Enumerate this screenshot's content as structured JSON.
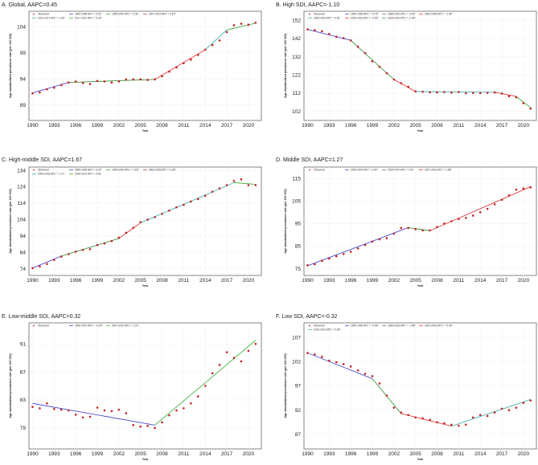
{
  "chart_data": [
    {
      "type": "line",
      "title": "A. Global, AAPC=0.45",
      "xlabel": "Year",
      "ylabel": "Age standardized prevalence rate (per 100 000)",
      "xlim": [
        1989.5,
        2021.8
      ],
      "ylim": [
        86.0,
        107.0
      ],
      "xticks": [
        1990,
        1993,
        1996,
        1999,
        2002,
        2005,
        2008,
        2011,
        2014,
        2017,
        2020
      ],
      "yticks": [
        89,
        94,
        99,
        104
      ],
      "points": {
        "x": [
          1990,
          1991,
          1992,
          1993,
          1994,
          1995,
          1996,
          1997,
          1998,
          1999,
          2000,
          2001,
          2002,
          2003,
          2004,
          2005,
          2006,
          2007,
          2008,
          2009,
          2010,
          2011,
          2012,
          2013,
          2014,
          2015,
          2016,
          2017,
          2018,
          2019,
          2020,
          2021
        ],
        "y": [
          91.2,
          91.4,
          92.0,
          92.3,
          92.8,
          93.3,
          93.5,
          93.2,
          93.0,
          93.6,
          93.5,
          93.3,
          93.5,
          93.9,
          93.9,
          93.9,
          93.8,
          93.9,
          94.5,
          95.4,
          96.2,
          97.0,
          97.7,
          98.6,
          99.6,
          100.5,
          101.4,
          103.0,
          104.3,
          104.6,
          104.4,
          104.8
        ]
      },
      "legend": [
        "Observed",
        "1990-1995 APC = 0.31*",
        "1995-2007 APC = 0.08",
        "2007-2014 APC = 0.87*",
        "2014-2017 APC = 1.28*",
        "2017-2021 APC = 0.23*"
      ],
      "series": [
        {
          "name": "1990-1995 APC = 0.31*",
          "color": "#3333cc",
          "x": [
            1990,
            1995
          ],
          "y": [
            91.3,
            93.3
          ]
        },
        {
          "name": "1995-2007 APC = 0.08",
          "color": "#2e8b2e",
          "x": [
            1995,
            2007
          ],
          "y": [
            93.3,
            93.9
          ]
        },
        {
          "name": "2007-2014 APC = 0.87*",
          "color": "#dd2222",
          "x": [
            2007,
            2014
          ],
          "y": [
            93.9,
            99.6
          ]
        },
        {
          "name": "2014-2017 APC = 1.28*",
          "color": "#2eaaaa",
          "x": [
            2014,
            2017
          ],
          "y": [
            99.6,
            103.4
          ]
        },
        {
          "name": "2017-2021 APC = 0.23*",
          "color": "#2eaa2e",
          "x": [
            2017,
            2021
          ],
          "y": [
            103.4,
            104.7
          ]
        }
      ]
    },
    {
      "type": "line",
      "title": "B. High SDI, AAPC=-1.10",
      "xlabel": "Year",
      "ylabel": "Age standardized prevalence rate (per 100 000)",
      "xlim": [
        1989.5,
        2021.8
      ],
      "ylim": [
        97.0,
        157.0
      ],
      "xticks": [
        1990,
        1993,
        1996,
        1999,
        2002,
        2005,
        2008,
        2011,
        2014,
        2017,
        2020
      ],
      "yticks": [
        102,
        112,
        122,
        132,
        142,
        152
      ],
      "points": {
        "x": [
          1990,
          1991,
          1992,
          1993,
          1994,
          1995,
          1996,
          1997,
          1998,
          1999,
          2000,
          2001,
          2002,
          2003,
          2004,
          2005,
          2006,
          2007,
          2008,
          2009,
          2010,
          2011,
          2012,
          2013,
          2014,
          2015,
          2016,
          2017,
          2018,
          2019,
          2020,
          2021
        ],
        "y": [
          147.0,
          146.6,
          146.0,
          144.5,
          143.0,
          142.2,
          141.0,
          137.5,
          134.0,
          129.5,
          126.5,
          123.0,
          119.5,
          117.5,
          115.5,
          113.0,
          112.8,
          112.5,
          112.4,
          112.6,
          112.3,
          112.6,
          112.0,
          112.1,
          112.0,
          112.2,
          112.4,
          111.8,
          110.3,
          109.7,
          106.5,
          103.5
        ]
      },
      "legend": [
        "Observed",
        "1990-1996 APC = -0.75*",
        "1996-2002 APC = -2.61*",
        "2002-2005 APC = -1.99*",
        "2005-2016 APC = 0.05",
        "2016-2019 APC = -0.65*",
        "2019-2021 APC = -2.34*"
      ],
      "series": [
        {
          "name": "1990-1996 APC = -0.75*",
          "color": "#3333cc",
          "x": [
            1990,
            1996
          ],
          "y": [
            147.0,
            141.0
          ]
        },
        {
          "name": "1996-2002 APC = -2.61*",
          "color": "#2e8b2e",
          "x": [
            1996,
            2002
          ],
          "y": [
            141.0,
            119.5
          ]
        },
        {
          "name": "2002-2005 APC = -1.99*",
          "color": "#dd2222",
          "x": [
            2002,
            2005
          ],
          "y": [
            119.5,
            112.9
          ]
        },
        {
          "name": "2005-2016 APC = 0.05",
          "color": "#2eaaaa",
          "x": [
            2005,
            2016
          ],
          "y": [
            112.9,
            112.5
          ]
        },
        {
          "name": "2016-2019 APC = -0.65*",
          "color": "#dd2222",
          "x": [
            2016,
            2019
          ],
          "y": [
            112.5,
            110.2
          ]
        },
        {
          "name": "2019-2021 APC = -2.34*",
          "color": "#2eaa2e",
          "x": [
            2019,
            2021
          ],
          "y": [
            110.2,
            104.0
          ]
        }
      ]
    },
    {
      "type": "line",
      "title": "C. High-middle SDI, AAPC=1.67",
      "xlabel": "Year",
      "ylabel": "Age standardized prevalence rate (per 100 000)",
      "xlim": [
        1989.5,
        2021.8
      ],
      "ylim": [
        70.0,
        136.0
      ],
      "xticks": [
        1990,
        1993,
        1996,
        1999,
        2002,
        2005,
        2008,
        2011,
        2014,
        2017,
        2020
      ],
      "yticks": [
        74,
        84,
        94,
        104,
        114,
        124,
        134
      ],
      "points": {
        "x": [
          1990,
          1991,
          1992,
          1993,
          1994,
          1995,
          1996,
          1997,
          1998,
          1999,
          2000,
          2001,
          2002,
          2003,
          2004,
          2005,
          2006,
          2007,
          2008,
          2009,
          2010,
          2011,
          2012,
          2013,
          2014,
          2015,
          2016,
          2017,
          2018,
          2019,
          2020,
          2021
        ],
        "y": [
          74.5,
          75.5,
          77.0,
          79.5,
          81.5,
          83.0,
          84.5,
          85.5,
          86.0,
          88.5,
          89.5,
          91.0,
          93.0,
          96.0,
          99.0,
          102.5,
          104.0,
          105.5,
          107.5,
          109.5,
          111.5,
          113.0,
          115.0,
          116.5,
          118.5,
          121.0,
          123.0,
          125.0,
          127.5,
          128.5,
          125.0,
          125.0
        ]
      },
      "legend": [
        "Observed",
        "1990-1994 APC = 2.37*",
        "1994-2002 APC = 1.49*",
        "2002-2005 APC = 3.38*",
        "2005-2018 APC = 1.71*",
        "2018-2021 APC = 0.59"
      ],
      "series": [
        {
          "name": "1990-1994 APC = 2.37*",
          "color": "#3333cc",
          "x": [
            1990,
            1994
          ],
          "y": [
            74.5,
            81.8
          ]
        },
        {
          "name": "1994-2002 APC = 1.49*",
          "color": "#2e8b2e",
          "x": [
            1994,
            2002
          ],
          "y": [
            81.8,
            92.5
          ]
        },
        {
          "name": "2002-2005 APC = 3.38*",
          "color": "#dd2222",
          "x": [
            2002,
            2005
          ],
          "y": [
            92.5,
            102.0
          ]
        },
        {
          "name": "2005-2018 APC = 1.71*",
          "color": "#2eaaaa",
          "x": [
            2005,
            2018
          ],
          "y": [
            102.0,
            126.5
          ]
        },
        {
          "name": "2018-2021 APC = 0.59",
          "color": "#2eaa2e",
          "x": [
            2018,
            2021
          ],
          "y": [
            126.5,
            125.5
          ]
        }
      ]
    },
    {
      "type": "line",
      "title": "D. Middle SDI, AAPC=1.27",
      "xlabel": "Year",
      "ylabel": "Age standardized prevalence rate (per 100 000)",
      "xlim": [
        1989.5,
        2021.8
      ],
      "ylim": [
        72.0,
        120.0
      ],
      "xticks": [
        1990,
        1993,
        1996,
        1999,
        2002,
        2005,
        2008,
        2011,
        2014,
        2017,
        2020
      ],
      "yticks": [
        75,
        85,
        95,
        105,
        115
      ],
      "points": {
        "x": [
          1990,
          1991,
          1992,
          1993,
          1994,
          1995,
          1996,
          1997,
          1998,
          1999,
          2000,
          2001,
          2002,
          2003,
          2004,
          2005,
          2006,
          2007,
          2008,
          2009,
          2010,
          2011,
          2012,
          2013,
          2014,
          2015,
          2016,
          2017,
          2018,
          2019,
          2020,
          2021
        ],
        "y": [
          76.5,
          77.0,
          78.5,
          79.5,
          80.5,
          81.5,
          82.5,
          84.0,
          85.5,
          87.0,
          88.0,
          88.5,
          90.5,
          93.0,
          93.0,
          92.5,
          92.0,
          92.0,
          93.5,
          95.0,
          96.0,
          97.0,
          97.5,
          98.5,
          100.0,
          101.5,
          103.5,
          105.5,
          107.5,
          110.0,
          110.5,
          111.0
        ]
      },
      "legend": [
        "Observed",
        "1990-2004 APC = 1.46*",
        "2004-2007 APC = 0.67",
        "2007-2021 APC = 1.68*"
      ],
      "series": [
        {
          "name": "1990-2004 APC = 1.46*",
          "color": "#3333cc",
          "x": [
            1990,
            2004
          ],
          "y": [
            76.3,
            93.2
          ]
        },
        {
          "name": "2004-2007 APC = 0.67",
          "color": "#2e8b2e",
          "x": [
            2004,
            2007
          ],
          "y": [
            93.2,
            91.8
          ]
        },
        {
          "name": "2007-2021 APC = 1.68*",
          "color": "#dd2222",
          "x": [
            2007,
            2021
          ],
          "y": [
            91.8,
            111.3
          ]
        }
      ]
    },
    {
      "type": "line",
      "title": "E. Low-middle SDI, AAPC=0.32",
      "xlabel": "Year",
      "ylabel": "Age standardized prevalence rate (per 100 000)",
      "xlim": [
        1989.5,
        2021.8
      ],
      "ylim": [
        76.0,
        94.0
      ],
      "xticks": [
        1990,
        1993,
        1996,
        1999,
        2002,
        2005,
        2008,
        2011,
        2014,
        2017,
        2020
      ],
      "yticks": [
        79,
        83,
        87,
        91
      ],
      "points": {
        "x": [
          1990,
          1991,
          1992,
          1993,
          1994,
          1995,
          1996,
          1997,
          1998,
          1999,
          2000,
          2001,
          2002,
          2003,
          2004,
          2005,
          2006,
          2007,
          2008,
          2009,
          2010,
          2011,
          2012,
          2013,
          2014,
          2015,
          2016,
          2017,
          2018,
          2019,
          2020,
          2021
        ],
        "y": [
          82.0,
          81.8,
          82.5,
          81.7,
          81.6,
          81.5,
          80.9,
          80.5,
          80.6,
          81.9,
          81.5,
          81.4,
          81.6,
          81.1,
          79.4,
          79.2,
          79.3,
          79.0,
          79.8,
          80.8,
          81.5,
          81.8,
          82.5,
          83.5,
          85.0,
          86.8,
          88.0,
          89.8,
          89.0,
          88.5,
          90.0,
          91.0
        ]
      },
      "legend": [
        "Observed",
        "1990-2007 APC = -0.24*",
        "2007-2021 APC = 1.01*"
      ],
      "series": [
        {
          "name": "1990-2007 APC = -0.24*",
          "color": "#3333cc",
          "x": [
            1990,
            2007
          ],
          "y": [
            82.5,
            79.4
          ]
        },
        {
          "name": "2007-2021 APC = 1.01*",
          "color": "#2eaa2e",
          "x": [
            2007,
            2021
          ],
          "y": [
            79.4,
            91.5
          ]
        }
      ]
    },
    {
      "type": "line",
      "title": "F. Low SDI, AAPC=-0.32",
      "xlabel": "Year",
      "ylabel": "Age standardized prevalence rate (per 100 000)",
      "xlim": [
        1989.5,
        2021.8
      ],
      "ylim": [
        84.0,
        110.0
      ],
      "xticks": [
        1990,
        1993,
        1996,
        1999,
        2002,
        2005,
        2008,
        2011,
        2014,
        2017,
        2020
      ],
      "yticks": [
        87,
        92,
        97,
        102,
        107
      ],
      "points": {
        "x": [
          1990,
          1991,
          1992,
          1993,
          1994,
          1995,
          1996,
          1997,
          1998,
          1999,
          2000,
          2001,
          2002,
          2003,
          2004,
          2005,
          2006,
          2007,
          2008,
          2009,
          2010,
          2011,
          2012,
          2013,
          2014,
          2015,
          2016,
          2017,
          2018,
          2019,
          2020,
          2021
        ],
        "y": [
          103.8,
          103.5,
          103.0,
          102.2,
          101.9,
          101.5,
          101.0,
          100.2,
          99.5,
          99.0,
          97.5,
          95.0,
          92.5,
          91.5,
          91.0,
          90.5,
          90.3,
          90.0,
          89.5,
          89.3,
          89.0,
          88.8,
          89.0,
          90.5,
          91.0,
          90.8,
          91.5,
          92.3,
          92.0,
          92.5,
          93.5,
          94.0
        ]
      },
      "legend": [
        "Observed",
        "1990-1999 APC = -0.59*",
        "1999-2003 APC = -1.98*",
        "2003-2010 APC = -0.43*",
        "2010-2021 APC = 0.56*"
      ],
      "series": [
        {
          "name": "1990-1999 APC = -0.59*",
          "color": "#3333cc",
          "x": [
            1990,
            1999
          ],
          "y": [
            103.8,
            98.5
          ]
        },
        {
          "name": "1999-2003 APC = -1.98*",
          "color": "#2e8b2e",
          "x": [
            1999,
            2003
          ],
          "y": [
            98.5,
            91.3
          ]
        },
        {
          "name": "2003-2010 APC = -0.43*",
          "color": "#dd2222",
          "x": [
            2003,
            2010
          ],
          "y": [
            91.3,
            88.7
          ]
        },
        {
          "name": "2010-2021 APC = 0.56*",
          "color": "#2eaaaa",
          "x": [
            2010,
            2021
          ],
          "y": [
            88.7,
            94.2
          ]
        }
      ]
    }
  ]
}
